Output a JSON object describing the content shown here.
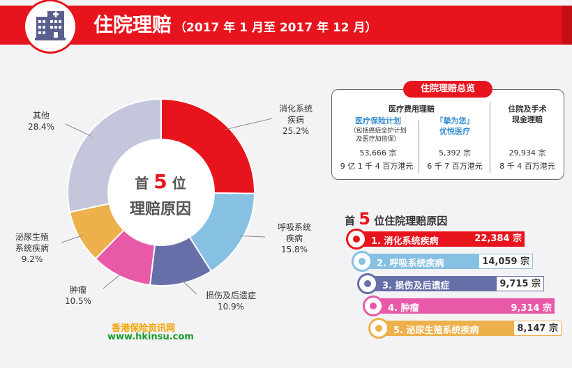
{
  "header": {
    "title": "住院理赔",
    "subtitle": "（2017 年 1 月至 2017 年 12 月）"
  },
  "chart_data": {
    "type": "pie",
    "categories": [
      "消化系统疾病",
      "呼吸系统疾病",
      "损伤及后遗症",
      "肿瘤",
      "泌尿生殖系统疾病",
      "其他"
    ],
    "values": [
      25.2,
      15.8,
      10.9,
      10.5,
      9.2,
      28.4
    ],
    "labels": [
      "消化系统\n疾病\n25.2%",
      "呼吸系统\n疾病\n15.8%",
      "损伤及后遗症\n10.9%",
      "肿瘤\n10.5%",
      "泌尿生殖\n系统疾病\n9.2%",
      "其他\n28.4%"
    ],
    "colors": [
      "#e8141d",
      "#86c0e3",
      "#676fa8",
      "#e85aa8",
      "#edb04a",
      "#c4c6dc"
    ],
    "center_line1_a": "首",
    "center_line1_n": "5",
    "center_line1_b": "位",
    "center_line2": "理赔原因"
  },
  "brand": {
    "cn": "香港保险资讯网",
    "url": "www.hkinsu.com"
  },
  "overview": {
    "badge": "住院理赔总览",
    "medical_header": "医疗费用理赔",
    "col1_name": "医疗保险计划",
    "col1_note1": "（包括癌症全护计划",
    "col1_note2": "及医疗加倍保）",
    "col1_count": "53,666 宗",
    "col1_amount": "9 亿 1 千 4 百万港元",
    "col2_name1": "「挚为您」",
    "col2_name2": "优悦医疗",
    "col2_count": "5,392 宗",
    "col2_amount": "6 千 7 百万港元",
    "col3_name1": "住院及手术",
    "col3_name2": "现金理赔",
    "col3_count": "29,934 宗",
    "col3_amount": "8 千 4 百万港元"
  },
  "ranking": {
    "title_a": "首",
    "title_n": "5",
    "title_b": "位住院理赔原因",
    "items": [
      {
        "name": "1. 消化系统疾病",
        "value": "22,384 宗",
        "color": "#e8141d",
        "icon": "stomach-icon"
      },
      {
        "name": "2. 呼吸系统疾病",
        "value": "14,059 宗",
        "color": "#86c0e3",
        "icon": "lungs-icon"
      },
      {
        "name": "3. 损伤及后遗症",
        "value": "9,715 宗",
        "color": "#676fa8",
        "icon": "bandage-icon"
      },
      {
        "name": "4. 肿瘤",
        "value": "9,314 宗",
        "color": "#e85aa8",
        "icon": "tumor-cell-icon"
      },
      {
        "name": "5. 泌尿生殖系统疾病",
        "value": "8,147 宗",
        "color": "#edb04a",
        "icon": "kidney-icon"
      }
    ],
    "counts": [
      22384,
      14059,
      9715,
      9314,
      8147
    ]
  }
}
